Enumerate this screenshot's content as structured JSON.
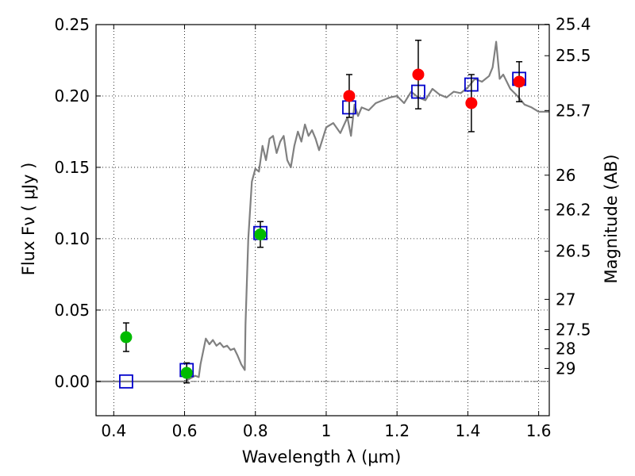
{
  "chart_data": {
    "type": "scatter",
    "title": "",
    "xlabel": "Wavelength  λ (μm)",
    "ylabel": "Flux  Fν  ( μJy )",
    "y2label": "Magnitude (AB)",
    "xlim": [
      0.35,
      1.63
    ],
    "ylim": [
      -0.024,
      0.25
    ],
    "grid": true,
    "x_ticks": [
      {
        "value": 0.4,
        "label": "0.4"
      },
      {
        "value": 0.6,
        "label": "0.6"
      },
      {
        "value": 0.8,
        "label": "0.8"
      },
      {
        "value": 1.0,
        "label": "1"
      },
      {
        "value": 1.2,
        "label": "1.2"
      },
      {
        "value": 1.4,
        "label": "1.4"
      },
      {
        "value": 1.6,
        "label": "1.6"
      }
    ],
    "y_ticks": [
      {
        "value": 0.0,
        "label": "0.00"
      },
      {
        "value": 0.05,
        "label": "0.05"
      },
      {
        "value": 0.1,
        "label": "0.10"
      },
      {
        "value": 0.15,
        "label": "0.15"
      },
      {
        "value": 0.2,
        "label": "0.20"
      },
      {
        "value": 0.25,
        "label": "0.25"
      }
    ],
    "y2_ticks": [
      {
        "flux": 0.2502,
        "label": "25.4"
      },
      {
        "flux": 0.2282,
        "label": "25.5"
      },
      {
        "flux": 0.1898,
        "label": "25.7"
      },
      {
        "flux": 0.1445,
        "label": "26"
      },
      {
        "flux": 0.1202,
        "label": "26.2"
      },
      {
        "flux": 0.0912,
        "label": "26.5"
      },
      {
        "flux": 0.0575,
        "label": "27"
      },
      {
        "flux": 0.0363,
        "label": "27.5"
      },
      {
        "flux": 0.0229,
        "label": "28"
      },
      {
        "flux": 0.0091,
        "label": "29"
      }
    ],
    "series": [
      {
        "marker": "circle",
        "color": "#00bb00",
        "points": [
          {
            "x": 0.435,
            "y": 0.031,
            "err": 0.01
          },
          {
            "x": 0.606,
            "y": 0.006,
            "err": 0.007
          },
          {
            "x": 0.814,
            "y": 0.103,
            "err": 0.009
          }
        ]
      },
      {
        "marker": "circle",
        "color": "#ff0000",
        "points": [
          {
            "x": 1.065,
            "y": 0.2,
            "err": 0.015
          },
          {
            "x": 1.26,
            "y": 0.215,
            "err": 0.024
          },
          {
            "x": 1.41,
            "y": 0.195,
            "err": 0.02
          },
          {
            "x": 1.545,
            "y": 0.21,
            "err": 0.014
          }
        ]
      },
      {
        "marker": "square-open",
        "color": "#0000cc",
        "points": [
          {
            "x": 0.435,
            "y": 0.0
          },
          {
            "x": 0.606,
            "y": 0.008
          },
          {
            "x": 0.814,
            "y": 0.104
          },
          {
            "x": 1.065,
            "y": 0.192
          },
          {
            "x": 1.26,
            "y": 0.203
          },
          {
            "x": 1.41,
            "y": 0.208
          },
          {
            "x": 1.545,
            "y": 0.212
          }
        ]
      }
    ],
    "model_line": {
      "color": "#808080",
      "x": [
        0.35,
        0.5,
        0.6,
        0.63,
        0.64,
        0.645,
        0.66,
        0.67,
        0.68,
        0.69,
        0.7,
        0.71,
        0.72,
        0.73,
        0.74,
        0.75,
        0.76,
        0.77,
        0.772,
        0.78,
        0.79,
        0.8,
        0.81,
        0.82,
        0.83,
        0.84,
        0.85,
        0.86,
        0.87,
        0.88,
        0.89,
        0.9,
        0.91,
        0.92,
        0.93,
        0.94,
        0.95,
        0.96,
        0.97,
        0.98,
        0.99,
        1.0,
        1.02,
        1.04,
        1.06,
        1.07,
        1.08,
        1.09,
        1.1,
        1.12,
        1.14,
        1.16,
        1.18,
        1.2,
        1.22,
        1.24,
        1.26,
        1.28,
        1.3,
        1.32,
        1.34,
        1.36,
        1.38,
        1.4,
        1.42,
        1.44,
        1.46,
        1.47,
        1.48,
        1.49,
        1.5,
        1.52,
        1.54,
        1.56,
        1.58,
        1.6,
        1.63
      ],
      "y": [
        0.0,
        0.0,
        0.0,
        0.004,
        0.003,
        0.012,
        0.03,
        0.026,
        0.029,
        0.025,
        0.027,
        0.024,
        0.025,
        0.022,
        0.023,
        0.018,
        0.012,
        0.008,
        0.04,
        0.1,
        0.14,
        0.149,
        0.147,
        0.165,
        0.155,
        0.17,
        0.172,
        0.16,
        0.168,
        0.172,
        0.155,
        0.15,
        0.165,
        0.175,
        0.168,
        0.18,
        0.172,
        0.176,
        0.17,
        0.162,
        0.17,
        0.178,
        0.181,
        0.174,
        0.185,
        0.172,
        0.194,
        0.186,
        0.192,
        0.19,
        0.195,
        0.197,
        0.199,
        0.2,
        0.195,
        0.203,
        0.199,
        0.197,
        0.205,
        0.201,
        0.199,
        0.203,
        0.202,
        0.206,
        0.212,
        0.21,
        0.214,
        0.22,
        0.238,
        0.212,
        0.215,
        0.205,
        0.2,
        0.194,
        0.192,
        0.189,
        0.189
      ]
    }
  }
}
